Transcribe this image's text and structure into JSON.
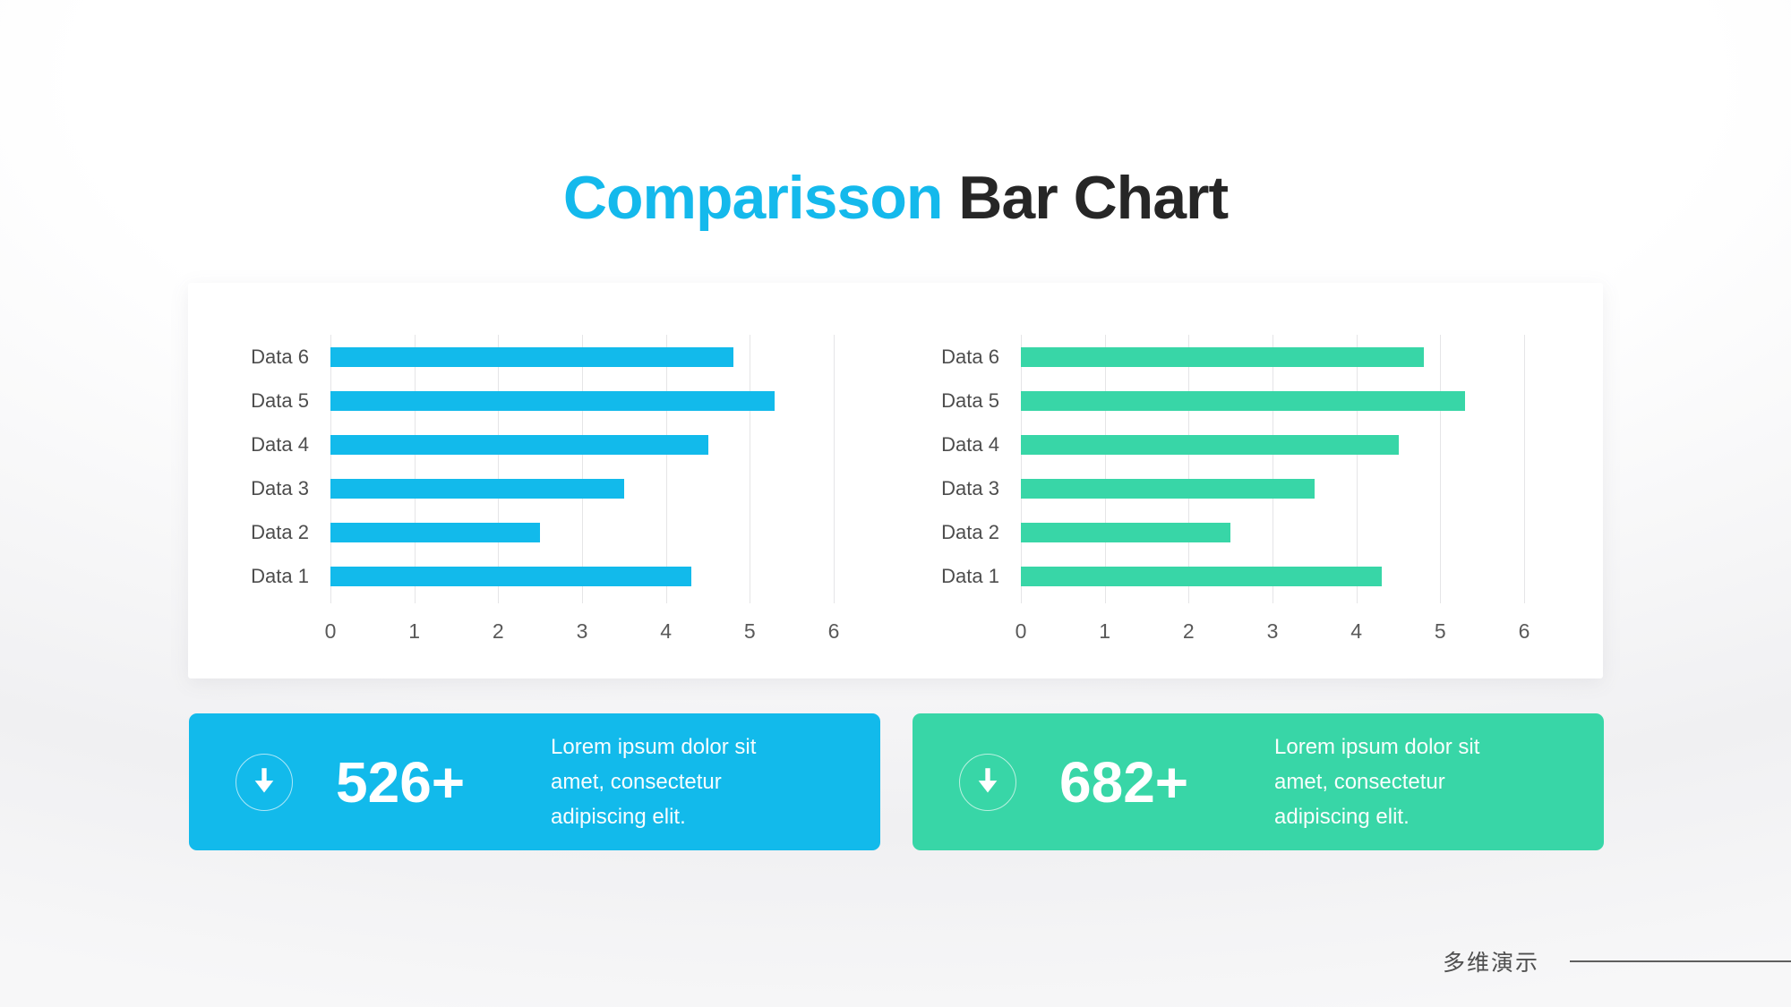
{
  "title": {
    "highlight": "Comparisson",
    "rest": " Bar Chart"
  },
  "chart_data": [
    {
      "type": "bar",
      "orientation": "horizontal",
      "series_color": "#12BAEB",
      "categories_top_to_bottom": [
        "Data 6",
        "Data 5",
        "Data 4",
        "Data 3",
        "Data 2",
        "Data 1"
      ],
      "values": [
        4.8,
        5.3,
        4.5,
        3.5,
        2.5,
        4.3
      ],
      "xlim": [
        0,
        6
      ],
      "xticks": [
        "0",
        "1",
        "2",
        "3",
        "4",
        "5",
        "6"
      ],
      "grid": true,
      "legend": "none",
      "title": "",
      "xlabel": "",
      "ylabel": ""
    },
    {
      "type": "bar",
      "orientation": "horizontal",
      "series_color": "#38D6A7",
      "categories_top_to_bottom": [
        "Data 6",
        "Data 5",
        "Data 4",
        "Data 3",
        "Data 2",
        "Data 1"
      ],
      "values": [
        4.8,
        5.3,
        4.5,
        3.5,
        2.5,
        4.3
      ],
      "xlim": [
        0,
        6
      ],
      "xticks": [
        "0",
        "1",
        "2",
        "3",
        "4",
        "5",
        "6"
      ],
      "grid": true,
      "legend": "none",
      "title": "",
      "xlabel": "",
      "ylabel": ""
    }
  ],
  "stat_cards": [
    {
      "value": "526+",
      "description": "Lorem ipsum dolor sit amet, consectetur adipiscing elit.",
      "background": "#12BAEB",
      "icon": "down-arrow-icon"
    },
    {
      "value": "682+",
      "description": "Lorem ipsum dolor sit amet, consectetur adipiscing elit.",
      "background": "#38D6A7",
      "icon": "down-arrow-icon"
    }
  ],
  "footer": {
    "brand_text": "多维演示"
  },
  "colors": {
    "accent_blue": "#12BAEB",
    "accent_green": "#38D6A7",
    "title_dark": "#262626",
    "category_label_text": "#4d4d4d",
    "axis_tick_text": "#595959",
    "gridline": "#e5e5e7",
    "panel_background": "#ffffff"
  }
}
